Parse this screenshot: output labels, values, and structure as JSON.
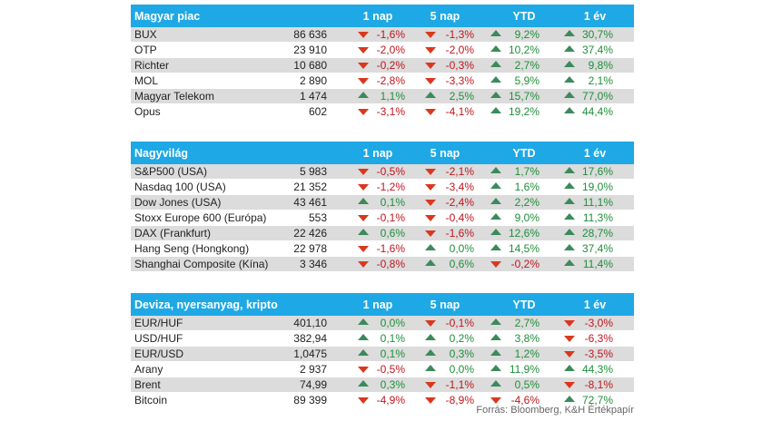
{
  "columns": {
    "c1": "1 nap",
    "c2": "5 nap",
    "c3": "YTD",
    "c4": "1 év"
  },
  "sections": [
    {
      "title": "Magyar piac",
      "rows": [
        {
          "name": "BUX",
          "value": "86 636",
          "d1": "-1,6%",
          "d5": "-1,3%",
          "ytd": "9,2%",
          "y1": "30,7%"
        },
        {
          "name": "OTP",
          "value": "23 910",
          "d1": "-2,0%",
          "d5": "-2,0%",
          "ytd": "10,2%",
          "y1": "37,4%"
        },
        {
          "name": "Richter",
          "value": "10 680",
          "d1": "-0,2%",
          "d5": "-0,3%",
          "ytd": "2,7%",
          "y1": "9,8%"
        },
        {
          "name": "MOL",
          "value": "2 890",
          "d1": "-2,8%",
          "d5": "-3,3%",
          "ytd": "5,9%",
          "y1": "2,1%"
        },
        {
          "name": "Magyar Telekom",
          "value": "1 474",
          "d1": "1,1%",
          "d5": "2,5%",
          "ytd": "15,7%",
          "y1": "77,0%"
        },
        {
          "name": "Opus",
          "value": "602",
          "d1": "-3,1%",
          "d5": "-4,1%",
          "ytd": "19,2%",
          "y1": "44,4%"
        }
      ]
    },
    {
      "title": "Nagyvilág",
      "rows": [
        {
          "name": "S&P500 (USA)",
          "value": "5 983",
          "d1": "-0,5%",
          "d5": "-2,1%",
          "ytd": "1,7%",
          "y1": "17,6%"
        },
        {
          "name": "Nasdaq 100 (USA)",
          "value": "21 352",
          "d1": "-1,2%",
          "d5": "-3,4%",
          "ytd": "1,6%",
          "y1": "19,0%"
        },
        {
          "name": "Dow Jones (USA)",
          "value": "43 461",
          "d1": "0,1%",
          "d5": "-2,4%",
          "ytd": "2,2%",
          "y1": "11,1%"
        },
        {
          "name": "Stoxx Europe 600 (Európa)",
          "value": "553",
          "d1": "-0,1%",
          "d5": "-0,4%",
          "ytd": "9,0%",
          "y1": "11,3%"
        },
        {
          "name": "DAX (Frankfurt)",
          "value": "22 426",
          "d1": "0,6%",
          "d5": "-1,6%",
          "ytd": "12,6%",
          "y1": "28,7%"
        },
        {
          "name": "Hang Seng (Hongkong)",
          "value": "22 978",
          "d1": "-1,6%",
          "d5": "0,0%",
          "ytd": "14,5%",
          "y1": "37,4%"
        },
        {
          "name": "Shanghai Composite (Kína)",
          "value": "3 346",
          "d1": "-0,8%",
          "d5": "0,6%",
          "ytd": "-0,2%",
          "y1": "11,4%"
        }
      ]
    },
    {
      "title": "Deviza, nyersanyag, kripto",
      "rows": [
        {
          "name": "EUR/HUF",
          "value": "401,10",
          "d1": "0,0%",
          "d5": "-0,1%",
          "ytd": "2,7%",
          "y1": "-3,0%"
        },
        {
          "name": "USD/HUF",
          "value": "382,94",
          "d1": "0,1%",
          "d5": "0,2%",
          "ytd": "3,8%",
          "y1": "-6,3%"
        },
        {
          "name": "EUR/USD",
          "value": "1,0475",
          "d1": "0,1%",
          "d5": "0,3%",
          "ytd": "1,2%",
          "y1": "-3,5%"
        },
        {
          "name": "Arany",
          "value": "2 937",
          "d1": "-0,5%",
          "d5": "0,0%",
          "ytd": "11,9%",
          "y1": "44,3%"
        },
        {
          "name": "Brent",
          "value": "74,99",
          "d1": "0,3%",
          "d5": "-1,1%",
          "ytd": "0,5%",
          "y1": "-8,1%"
        },
        {
          "name": "Bitcoin",
          "value": "89 399",
          "d1": "-4,9%",
          "d5": "-8,9%",
          "ytd": "-4,6%",
          "y1": "72,7%"
        }
      ]
    }
  ],
  "footer": "Forrás: Bloomberg, K&H Értékpapír",
  "colors": {
    "header": "#1ea8e5",
    "up": "#3c8a5c",
    "down": "#d9381e",
    "row_alt": "#dcdcdc"
  }
}
